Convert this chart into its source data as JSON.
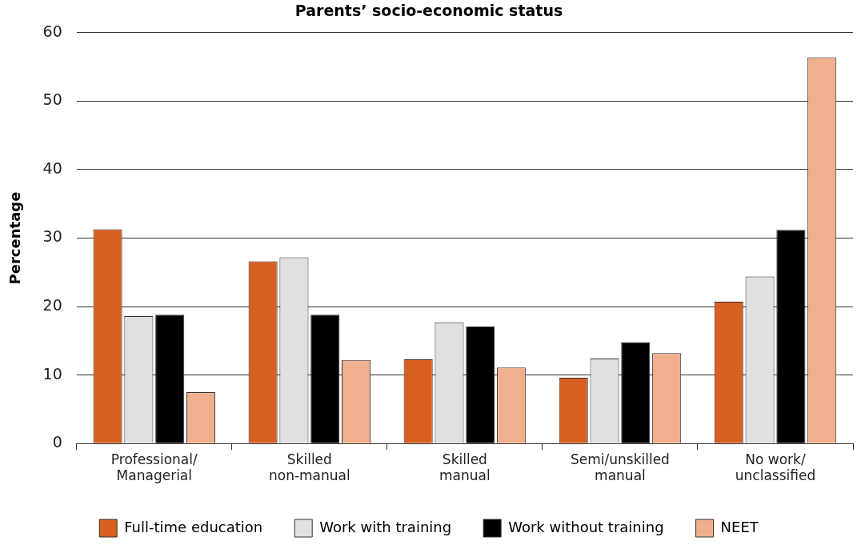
{
  "chart_data": {
    "type": "bar",
    "title": "Parents’ socio-economic status",
    "ylabel": "Percentage",
    "categories": [
      "Professional/\nManagerial",
      "Skilled\nnon-manual",
      "Skilled\nmanual",
      "Semi/unskilled\nmanual",
      "No work/\nunclassified"
    ],
    "series": [
      {
        "name": "Full-time education",
        "color": "#d95f20",
        "values": [
          31.3,
          26.6,
          12.3,
          9.6,
          20.7
        ]
      },
      {
        "name": "Work with training",
        "color": "#e0e0e2",
        "values": [
          18.6,
          27.2,
          17.7,
          12.4,
          24.4
        ]
      },
      {
        "name": "Work without training",
        "color": "#000000",
        "values": [
          18.8,
          18.8,
          17.1,
          14.8,
          31.2
        ]
      },
      {
        "name": "NEET",
        "color": "#f0b08e",
        "values": [
          7.5,
          12.2,
          11.1,
          13.2,
          56.4
        ]
      }
    ],
    "ylim": [
      0,
      60
    ],
    "yticks": [
      0,
      10,
      20,
      30,
      40,
      50,
      60
    ],
    "grid": "y",
    "legend": "bottom"
  }
}
